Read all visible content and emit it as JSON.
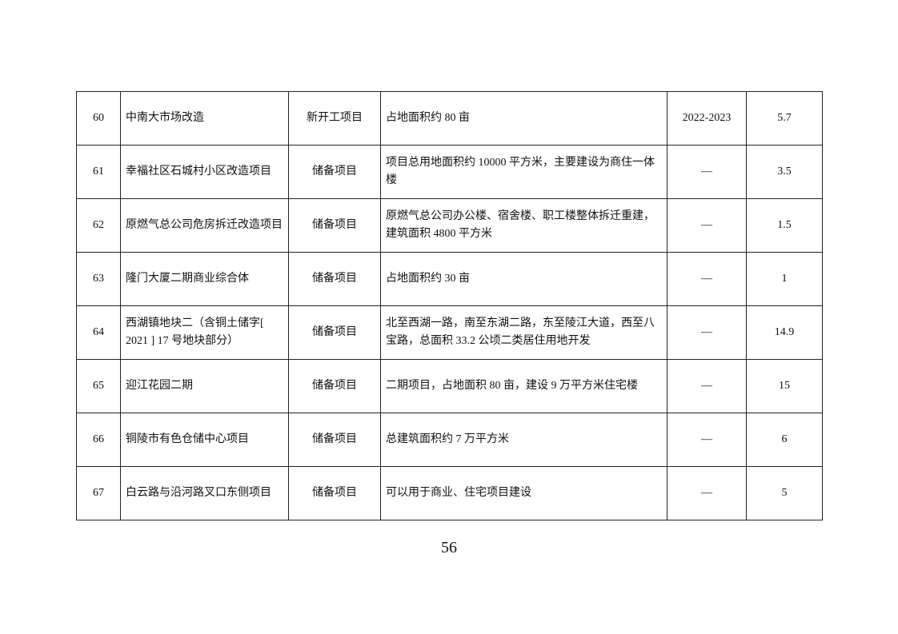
{
  "rows": [
    {
      "no": "60",
      "name": "中南大市场改造",
      "type": "新开工项目",
      "content": "占地面积约 80 亩",
      "period": "2022-2023",
      "invest": "5.7"
    },
    {
      "no": "61",
      "name": "幸福社区石城村小区改造项目",
      "type": "储备项目",
      "content": "项目总用地面积约 10000 平方米，主要建设为商住一体楼",
      "period": "—",
      "invest": "3.5"
    },
    {
      "no": "62",
      "name": "原燃气总公司危房拆迁改造项目",
      "type": "储备项目",
      "content": "原燃气总公司办公楼、宿舍楼、职工楼整体拆迁重建，建筑面积 4800 平方米",
      "period": "—",
      "invest": "1.5"
    },
    {
      "no": "63",
      "name": "隆门大厦二期商业综合体",
      "type": "储备项目",
      "content": "占地面积约 30 亩",
      "period": "—",
      "invest": "1"
    },
    {
      "no": "64",
      "name": "西湖镇地块二（含铜土储字[ 2021 ] 17 号地块部分）",
      "type": "储备项目",
      "content": "北至西湖一路，南至东湖二路，东至陵江大道，西至八宝路，总面积 33.2 公顷二类居住用地开发",
      "period": "—",
      "invest": "14.9"
    },
    {
      "no": "65",
      "name": "迎江花园二期",
      "type": "储备项目",
      "content": "二期项目，占地面积 80 亩，建设 9 万平方米住宅楼",
      "period": "—",
      "invest": "15"
    },
    {
      "no": "66",
      "name": "铜陵市有色仓储中心项目",
      "type": "储备项目",
      "content": "总建筑面积约 7 万平方米",
      "period": "—",
      "invest": "6"
    },
    {
      "no": "67",
      "name": "白云路与沿河路叉口东侧项目",
      "type": "储备项目",
      "content": "可以用于商业、住宅项目建设",
      "period": "—",
      "invest": "5"
    }
  ],
  "page_number": "56"
}
